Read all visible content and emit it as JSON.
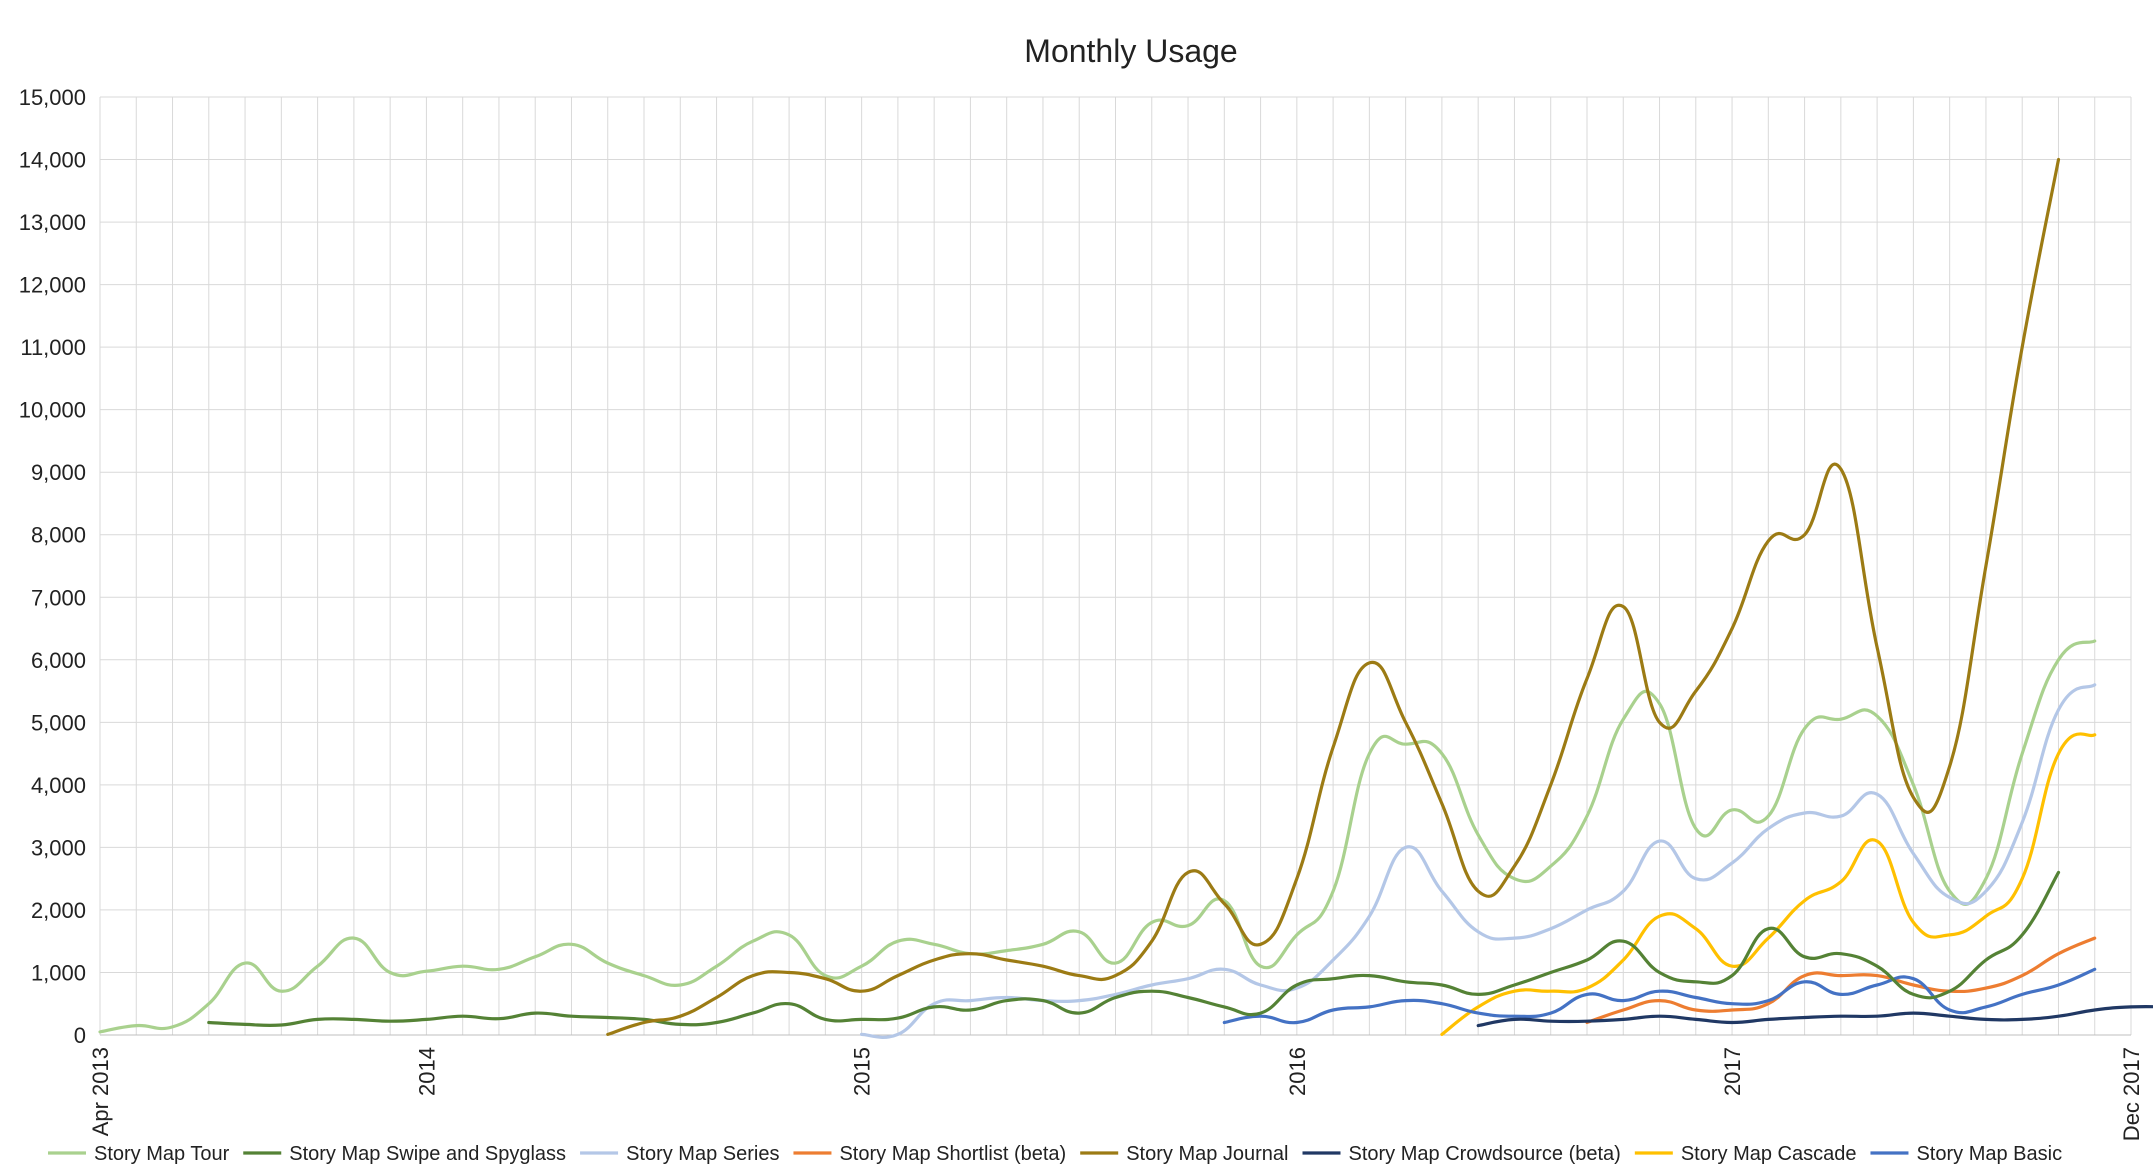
{
  "chart_data": {
    "type": "line",
    "title": "Monthly Usage",
    "xlabel": "",
    "ylabel": "",
    "ylim": [
      0,
      15000
    ],
    "yticks": [
      "0",
      "1,000",
      "2,000",
      "3,000",
      "4,000",
      "5,000",
      "6,000",
      "7,000",
      "8,000",
      "9,000",
      "10,000",
      "11,000",
      "12,000",
      "13,000",
      "14,000",
      "15,000"
    ],
    "x_range": [
      "2013-04",
      "2017-12"
    ],
    "x_tick_labels": [
      {
        "at": "2013-04",
        "label": "Apr 2013"
      },
      {
        "at": "2014-01",
        "label": "2014"
      },
      {
        "at": "2015-01",
        "label": "2015"
      },
      {
        "at": "2016-01",
        "label": "2016"
      },
      {
        "at": "2017-01",
        "label": "2017"
      },
      {
        "at": "2017-12",
        "label": "Dec 2017"
      }
    ],
    "grid": true,
    "legend_position": "bottom",
    "series": [
      {
        "name": "Story Map Tour",
        "color": "#a9d18e",
        "start": "2013-04",
        "values": [
          50,
          150,
          130,
          500,
          1150,
          700,
          1100,
          1550,
          1000,
          1020,
          1100,
          1050,
          1250,
          1450,
          1150,
          950,
          800,
          1100,
          1500,
          1600,
          950,
          1100,
          1500,
          1450,
          1300,
          1350,
          1450,
          1650,
          1150,
          1800,
          1750,
          2150,
          1100,
          1600,
          2300,
          4500,
          4650,
          4500,
          3200,
          2500,
          2700,
          3500,
          5050,
          5300,
          3300,
          3600,
          3500,
          4900,
          5050,
          5100,
          4000,
          2300,
          2500,
          4500,
          6000,
          6300
        ]
      },
      {
        "name": "Story Map Swipe and Spyglass",
        "color": "#548235",
        "start": "2013-07",
        "values": [
          200,
          170,
          160,
          250,
          250,
          220,
          250,
          300,
          260,
          350,
          300,
          280,
          250,
          170,
          200,
          350,
          500,
          250,
          250,
          270,
          450,
          400,
          550,
          550,
          350,
          600,
          700,
          600,
          450,
          350,
          800,
          900,
          950,
          850,
          800,
          650,
          800,
          1000,
          1200,
          1500,
          1000,
          850,
          950,
          1700,
          1250,
          1300,
          1100,
          650,
          700,
          1200,
          1600,
          2600
        ]
      },
      {
        "name": "Story Map Series",
        "color": "#b4c7e7",
        "start": "2015-01",
        "values": [
          10,
          10,
          500,
          550,
          600,
          550,
          550,
          650,
          800,
          900,
          1050,
          800,
          750,
          1200,
          1900,
          3000,
          2300,
          1650,
          1550,
          1700,
          2000,
          2300,
          3100,
          2500,
          2750,
          3300,
          3550,
          3500,
          3850,
          2900,
          2200,
          2300,
          3400,
          5200,
          5600
        ]
      },
      {
        "name": "Story Map Shortlist (beta)",
        "color": "#ed7d31",
        "start": "2016-09",
        "values": [
          200,
          400,
          550,
          400,
          400,
          500,
          950,
          950,
          950,
          800,
          700,
          750,
          950,
          1300,
          1550
        ]
      },
      {
        "name": "Story Map Journal",
        "color": "#9c7b14",
        "start": "2014-06",
        "values": [
          10,
          200,
          300,
          600,
          950,
          1000,
          900,
          700,
          950,
          1200,
          1300,
          1200,
          1100,
          950,
          950,
          1500,
          2600,
          2100,
          1450,
          2500,
          4600,
          5950,
          5000,
          3700,
          2300,
          2700,
          4000,
          5700,
          6850,
          5000,
          5500,
          6500,
          7900,
          8000,
          9050,
          6200,
          3800,
          4300,
          7500,
          11000,
          14000
        ]
      },
      {
        "name": "Story Map Crowdsource (beta)",
        "color": "#203864",
        "start": "2016-06",
        "values": [
          150,
          250,
          220,
          220,
          250,
          300,
          250,
          200,
          250,
          280,
          300,
          300,
          350,
          300,
          250,
          250,
          300,
          400,
          450,
          450
        ]
      },
      {
        "name": "Story Map Cascade",
        "color": "#ffc000",
        "start": "2016-05",
        "values": [
          10,
          450,
          700,
          700,
          750,
          1200,
          1900,
          1700,
          1100,
          1550,
          2150,
          2450,
          3100,
          1800,
          1600,
          1900,
          2500,
          4500,
          4800
        ]
      },
      {
        "name": "Story Map Basic",
        "color": "#4472c4",
        "start": "2015-11",
        "values": [
          200,
          300,
          200,
          400,
          450,
          550,
          500,
          350,
          300,
          350,
          650,
          550,
          700,
          600,
          500,
          550,
          850,
          650,
          800,
          900,
          400,
          450,
          650,
          800,
          1050
        ]
      }
    ]
  }
}
